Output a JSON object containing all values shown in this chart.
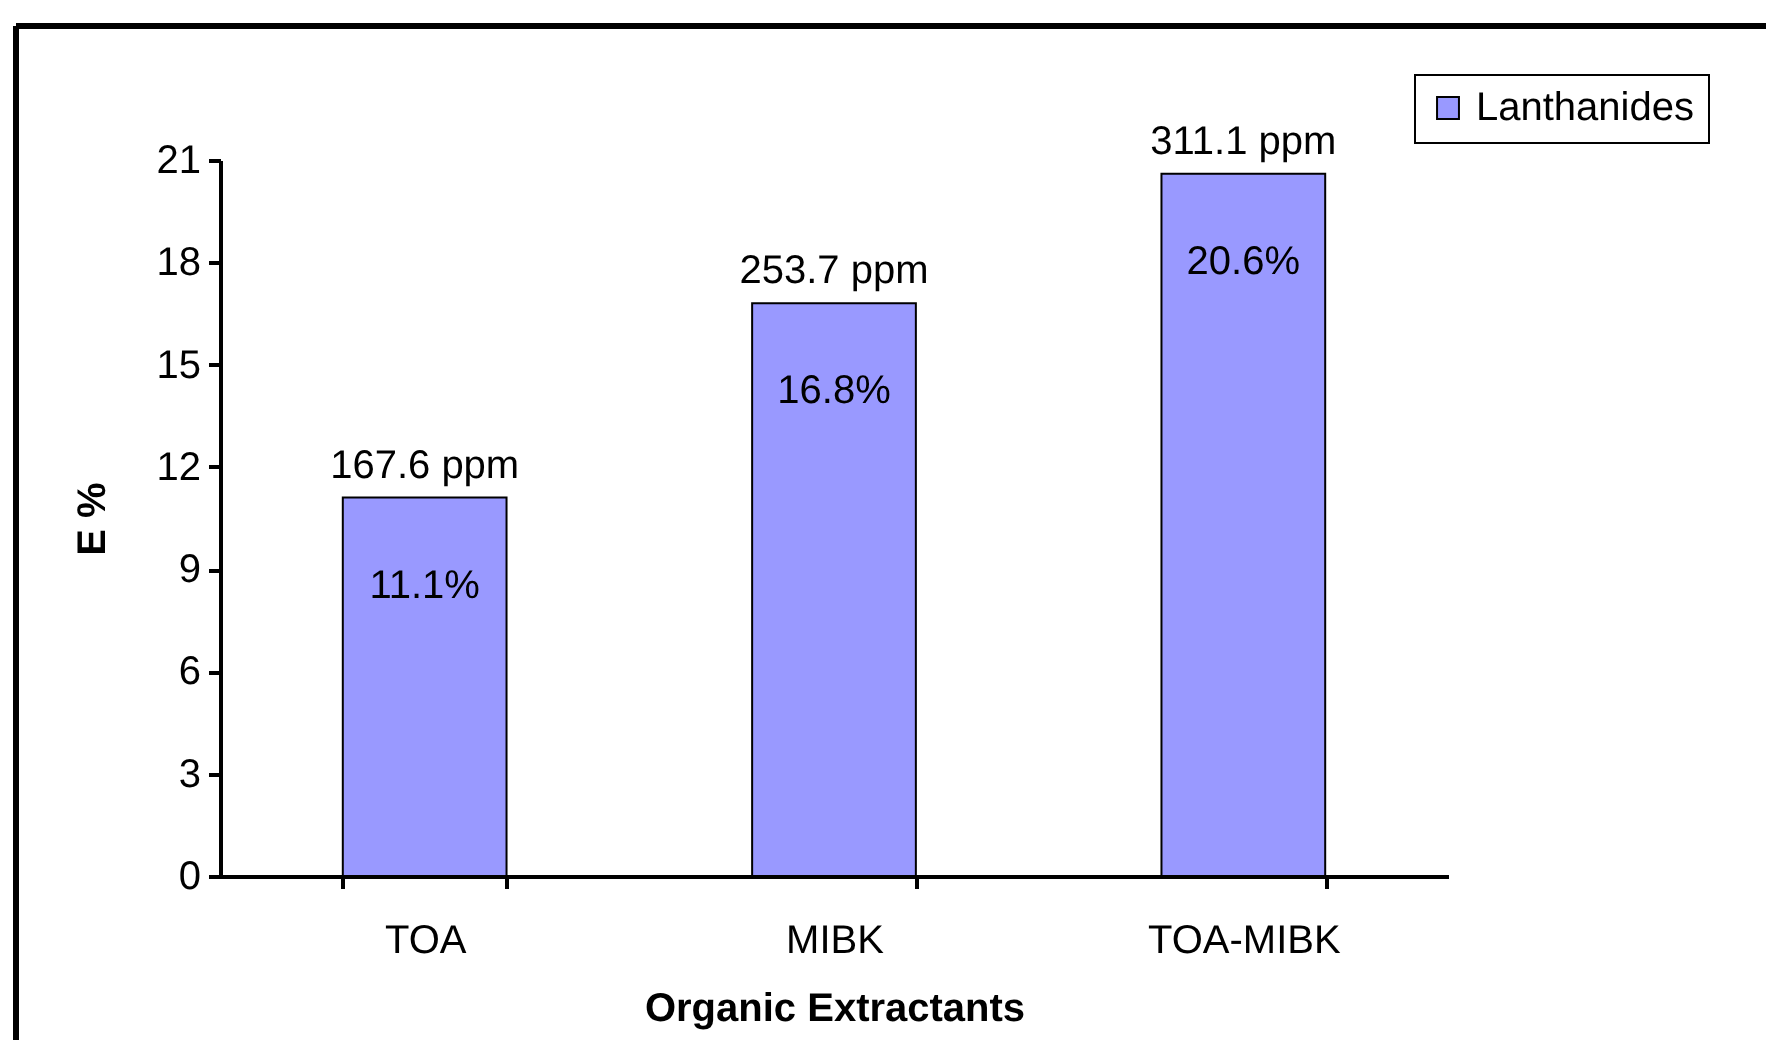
{
  "chart_data": {
    "type": "bar",
    "xlabel": "Organic Extractants",
    "ylabel": "E %",
    "categories": [
      "TOA",
      "MIBK",
      "TOA-MIBK"
    ],
    "series": [
      {
        "name": "Lanthanides",
        "color": "#9999ff",
        "values": [
          11.1,
          16.8,
          20.6
        ],
        "value_labels": [
          "11.1%",
          "16.8%",
          "20.6%"
        ]
      }
    ],
    "annotations": [
      {
        "text": "167.6 ppm",
        "x": "TOA",
        "y": 11.1
      },
      {
        "text": "253.7 ppm",
        "x": "MIBK",
        "y": 16.8
      },
      {
        "text": "311.1 ppm",
        "x": "TOA-MIBK",
        "y": 20.6
      }
    ],
    "ylim": [
      0,
      21
    ],
    "yticks": [
      0,
      3,
      6,
      9,
      12,
      15,
      18,
      21
    ],
    "grid": false,
    "legend": "top right"
  }
}
